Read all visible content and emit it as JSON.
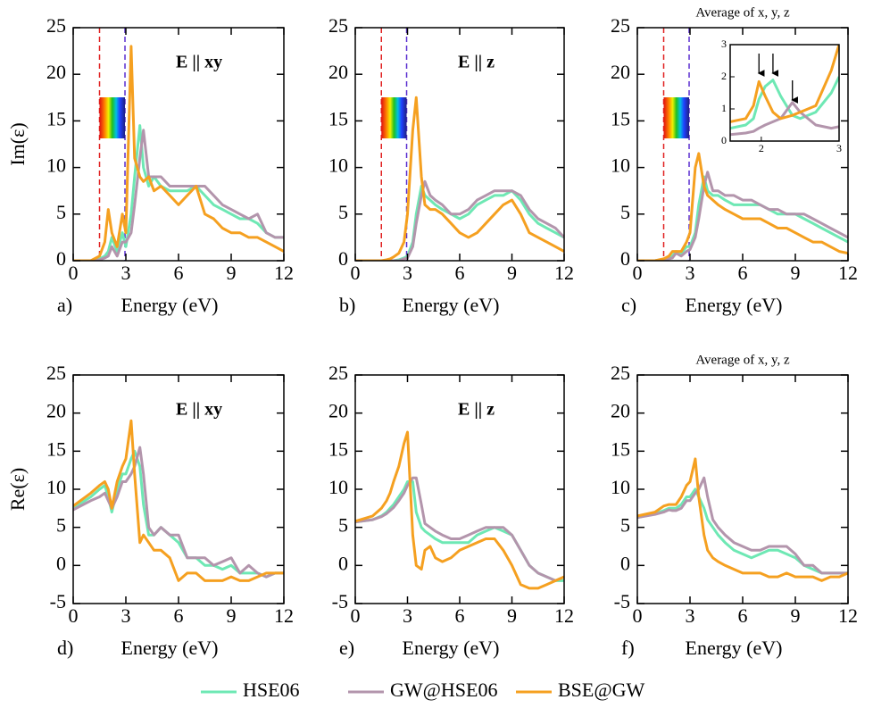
{
  "chart_data": [
    {
      "type": "line",
      "panel_label": "a)",
      "annotation": "E || xy",
      "xlabel": "Energy (eV)",
      "ylabel": "Im(ε)",
      "xlim": [
        0,
        12
      ],
      "ylim": [
        0,
        25
      ],
      "xticks": [
        0,
        3,
        6,
        9,
        12
      ],
      "yticks": [
        0,
        5,
        10,
        15,
        20,
        25
      ],
      "vlines": [
        {
          "x": 1.5,
          "color": "#e02020"
        },
        {
          "x": 2.95,
          "color": "#5a2ed0"
        }
      ],
      "x": [
        0,
        1,
        1.5,
        1.8,
        2,
        2.2,
        2.5,
        2.8,
        3,
        3.3,
        3.5,
        3.8,
        4,
        4.3,
        4.6,
        5,
        5.5,
        6,
        6.5,
        7,
        7.5,
        8,
        8.5,
        9,
        9.5,
        10,
        10.5,
        11,
        11.5,
        12
      ],
      "series": [
        {
          "name": "HSE06",
          "color": "#6ee8b4",
          "values": [
            0,
            0,
            0.2,
            0.5,
            1,
            2.5,
            1,
            3,
            1.5,
            5,
            9,
            14.5,
            10,
            8,
            9,
            8,
            7.5,
            7.5,
            7.5,
            8,
            7,
            6,
            5.5,
            5,
            4.5,
            4.5,
            4,
            3,
            2.5,
            2.5
          ]
        },
        {
          "name": "GW@HSE06",
          "color": "#b395ac",
          "values": [
            0,
            0,
            0.1,
            0.3,
            0.5,
            1.5,
            0.5,
            2,
            2,
            3,
            6,
            11,
            14,
            9,
            9,
            9,
            8,
            8,
            8,
            8,
            8,
            7,
            6,
            5.5,
            5,
            4.5,
            5,
            3,
            2.5,
            2.5
          ]
        },
        {
          "name": "BSE@GW",
          "color": "#f5a020",
          "values": [
            0,
            0,
            0.5,
            2,
            5.5,
            3,
            1.5,
            5,
            3,
            23,
            11,
            9,
            8.5,
            9,
            7.5,
            8,
            7,
            6,
            7,
            8,
            5,
            4.5,
            3.5,
            3,
            3,
            2.5,
            2.5,
            2,
            1.5,
            1
          ]
        }
      ]
    },
    {
      "type": "line",
      "panel_label": "b)",
      "annotation": "E || z",
      "xlabel": "Energy (eV)",
      "xlim": [
        0,
        12
      ],
      "ylim": [
        0,
        25
      ],
      "xticks": [
        0,
        3,
        6,
        9,
        12
      ],
      "yticks": [
        0,
        5,
        10,
        15,
        20,
        25
      ],
      "vlines": [
        {
          "x": 1.5,
          "color": "#e02020"
        },
        {
          "x": 2.95,
          "color": "#5a2ed0"
        }
      ],
      "x": [
        0,
        1,
        1.5,
        1.8,
        2,
        2.2,
        2.5,
        2.8,
        3,
        3.3,
        3.5,
        3.8,
        4,
        4.3,
        4.6,
        5,
        5.5,
        6,
        6.5,
        7,
        7.5,
        8,
        8.5,
        9,
        9.5,
        10,
        10.5,
        11,
        11.5,
        12
      ],
      "series": [
        {
          "color": "#6ee8b4",
          "values": [
            0,
            0,
            0,
            0,
            0,
            0,
            0.1,
            0.3,
            0.5,
            2,
            5,
            8,
            7,
            6.5,
            6,
            5.5,
            5,
            4.5,
            5,
            6,
            6.5,
            7,
            7,
            7.5,
            6.5,
            5,
            4,
            3.5,
            3,
            2.5
          ]
        },
        {
          "color": "#b395ac",
          "values": [
            0,
            0,
            0,
            0,
            0,
            0,
            0,
            0.2,
            0.3,
            1.5,
            4,
            7,
            8.5,
            7,
            6.5,
            6,
            5,
            5,
            5.5,
            6.5,
            7,
            7.5,
            7.5,
            7.5,
            7,
            5.5,
            4.5,
            4,
            3.5,
            2.5
          ]
        },
        {
          "color": "#f5a020",
          "values": [
            0,
            0,
            0,
            0.1,
            0.2,
            0.4,
            0.8,
            2,
            5,
            14,
            17.5,
            9,
            6,
            5.5,
            5.5,
            5,
            4,
            3,
            2.5,
            3,
            4,
            5,
            6,
            6.5,
            5,
            3,
            2.5,
            2,
            1.5,
            1
          ]
        }
      ]
    },
    {
      "type": "line",
      "panel_label": "c)",
      "title": "Average of x, y, z",
      "xlabel": "Energy (eV)",
      "xlim": [
        0,
        12
      ],
      "ylim": [
        0,
        25
      ],
      "xticks": [
        0,
        3,
        6,
        9,
        12
      ],
      "yticks": [
        0,
        5,
        10,
        15,
        20,
        25
      ],
      "vlines": [
        {
          "x": 1.5,
          "color": "#e02020"
        },
        {
          "x": 2.95,
          "color": "#5a2ed0"
        }
      ],
      "x": [
        0,
        1,
        1.5,
        1.8,
        2,
        2.2,
        2.5,
        2.8,
        3,
        3.3,
        3.5,
        3.8,
        4,
        4.3,
        4.6,
        5,
        5.5,
        6,
        6.5,
        7,
        7.5,
        8,
        8.5,
        9,
        9.5,
        10,
        10.5,
        11,
        11.5,
        12
      ],
      "series": [
        {
          "color": "#6ee8b4",
          "values": [
            0,
            0,
            0.1,
            0.3,
            0.5,
            1,
            0.8,
            1.5,
            1.5,
            3,
            6,
            9,
            7.5,
            7,
            7,
            6.5,
            6,
            6,
            6,
            6,
            5.5,
            5,
            5,
            5,
            4.5,
            4,
            3.5,
            3,
            2.5,
            2
          ]
        },
        {
          "color": "#b395ac",
          "values": [
            0,
            0,
            0.1,
            0.2,
            0.3,
            0.8,
            0.5,
            1,
            1.2,
            2.5,
            4.5,
            8,
            9.5,
            7.5,
            7.5,
            7,
            7,
            6.5,
            6.5,
            6,
            5.5,
            5.5,
            5,
            5,
            5,
            4.5,
            4,
            3.5,
            3,
            2.5
          ]
        },
        {
          "color": "#f5a020",
          "values": [
            0,
            0,
            0.2,
            0.5,
            1,
            1,
            1,
            2,
            3,
            10,
            11.5,
            8,
            7,
            6.5,
            6,
            5.5,
            5,
            4.5,
            4.5,
            4.5,
            4,
            3.5,
            3.5,
            3,
            2.5,
            2,
            2,
            1.5,
            1,
            0.8
          ]
        }
      ],
      "inset": {
        "xlim": [
          1.6,
          3
        ],
        "ylim": [
          0,
          3
        ],
        "xticks": [
          2,
          3
        ],
        "yticks": [
          0,
          1,
          2,
          3
        ],
        "arrows": [
          1.97,
          2.15,
          2.4
        ],
        "x": [
          1.6,
          1.8,
          1.9,
          1.97,
          2.05,
          2.15,
          2.25,
          2.4,
          2.5,
          2.7,
          2.9,
          3
        ],
        "series": [
          {
            "color": "#6ee8b4",
            "values": [
              0.4,
              0.5,
              0.7,
              1.3,
              1.7,
              1.9,
              1.4,
              0.8,
              0.7,
              0.9,
              1.5,
              2.0
            ]
          },
          {
            "color": "#b395ac",
            "values": [
              0.2,
              0.25,
              0.3,
              0.4,
              0.5,
              0.6,
              0.7,
              1.2,
              0.9,
              0.5,
              0.4,
              0.45
            ]
          },
          {
            "color": "#f5a020",
            "values": [
              0.6,
              0.7,
              1.1,
              1.85,
              1.4,
              0.9,
              0.7,
              0.8,
              0.9,
              1.1,
              2.2,
              3.0
            ]
          }
        ]
      }
    },
    {
      "type": "line",
      "panel_label": "d)",
      "annotation": "E || xy",
      "xlabel": "Energy (eV)",
      "ylabel": "Re(ε)",
      "xlim": [
        0,
        12
      ],
      "ylim": [
        -5,
        25
      ],
      "xticks": [
        0,
        3,
        6,
        9,
        12
      ],
      "yticks": [
        -5,
        0,
        5,
        10,
        15,
        20,
        25
      ],
      "x": [
        0,
        1,
        1.5,
        1.8,
        2,
        2.2,
        2.5,
        2.8,
        3,
        3.3,
        3.5,
        3.8,
        4,
        4.3,
        4.6,
        5,
        5.5,
        6,
        6.5,
        7,
        7.5,
        8,
        8.5,
        9,
        9.5,
        10,
        10.5,
        11,
        11.5,
        12
      ],
      "series": [
        {
          "color": "#6ee8b4",
          "values": [
            7.5,
            9,
            10,
            10.5,
            9,
            7,
            10,
            12,
            12,
            14,
            15,
            13,
            8,
            4,
            4,
            5,
            4,
            3,
            1,
            1,
            0,
            0,
            -0.5,
            0,
            -1,
            -1,
            -1,
            -1.5,
            -1,
            -1
          ]
        },
        {
          "color": "#b395ac",
          "values": [
            7.3,
            8.5,
            9,
            9.5,
            8.5,
            7.5,
            9,
            11,
            11,
            12,
            13,
            15.5,
            12,
            5,
            4,
            5,
            4,
            4,
            1,
            1,
            1,
            0,
            0.5,
            1,
            -1,
            0,
            -1,
            -1.5,
            -1,
            -1
          ]
        },
        {
          "color": "#f5a020",
          "values": [
            7.8,
            9.5,
            10.5,
            11,
            10,
            7.5,
            11,
            13,
            14,
            19,
            12,
            3,
            4,
            3,
            2,
            2,
            1,
            -2,
            -1,
            -1,
            -2,
            -2,
            -2,
            -1.5,
            -2,
            -2,
            -1.5,
            -1,
            -1,
            -1
          ]
        }
      ]
    },
    {
      "type": "line",
      "panel_label": "e)",
      "annotation": "E || z",
      "xlabel": "Energy (eV)",
      "xlim": [
        0,
        12
      ],
      "ylim": [
        -5,
        25
      ],
      "xticks": [
        0,
        3,
        6,
        9,
        12
      ],
      "yticks": [
        -5,
        0,
        5,
        10,
        15,
        20,
        25
      ],
      "x": [
        0,
        1,
        1.5,
        1.8,
        2,
        2.2,
        2.5,
        2.8,
        3,
        3.3,
        3.5,
        3.8,
        4,
        4.3,
        4.6,
        5,
        5.5,
        6,
        6.5,
        7,
        7.5,
        8,
        8.5,
        9,
        9.5,
        10,
        10.5,
        11,
        11.5,
        12
      ],
      "series": [
        {
          "color": "#6ee8b4",
          "values": [
            5.7,
            6,
            6.5,
            7,
            7.5,
            8,
            9,
            10,
            11,
            11,
            7,
            5,
            4.5,
            4,
            3.5,
            3,
            3,
            3,
            3,
            4,
            4.5,
            5,
            4.5,
            4,
            2,
            0,
            -1,
            -1.5,
            -2,
            -2
          ]
        },
        {
          "color": "#b395ac",
          "values": [
            5.7,
            6,
            6.4,
            6.8,
            7.2,
            7.6,
            8.5,
            9.5,
            10.5,
            11.5,
            11.5,
            8,
            5.5,
            5,
            4.5,
            4,
            3.5,
            3.5,
            4,
            4.5,
            5,
            5,
            5,
            4,
            2,
            0,
            -1,
            -1.5,
            -2,
            -1.5
          ]
        },
        {
          "color": "#f5a020",
          "values": [
            5.8,
            6.5,
            7.5,
            8.5,
            9.5,
            11,
            13,
            16,
            17.5,
            4,
            0,
            -0.5,
            2,
            2.5,
            1,
            0.5,
            1,
            2,
            2.5,
            3,
            3.5,
            3.5,
            2,
            0,
            -2.5,
            -3,
            -3,
            -2.5,
            -2,
            -1.5
          ]
        }
      ]
    },
    {
      "type": "line",
      "panel_label": "f)",
      "title": "Average of x, y, z",
      "xlabel": "Energy (eV)",
      "xlim": [
        0,
        12
      ],
      "ylim": [
        -5,
        25
      ],
      "xticks": [
        0,
        3,
        6,
        9,
        12
      ],
      "yticks": [
        -5,
        0,
        5,
        10,
        15,
        20,
        25
      ],
      "x": [
        0,
        1,
        1.5,
        1.8,
        2,
        2.2,
        2.5,
        2.8,
        3,
        3.3,
        3.5,
        3.8,
        4,
        4.3,
        4.6,
        5,
        5.5,
        6,
        6.5,
        7,
        7.5,
        8,
        8.5,
        9,
        9.5,
        10,
        10.5,
        11,
        11.5,
        12
      ],
      "series": [
        {
          "color": "#6ee8b4",
          "values": [
            6.3,
            6.8,
            7.2,
            7.5,
            7.5,
            7.5,
            8,
            9,
            9,
            10,
            9,
            7.5,
            6,
            5,
            4,
            3,
            2,
            1.5,
            1,
            1.5,
            2,
            2,
            1.5,
            1,
            0,
            -0.5,
            -1,
            -1,
            -1,
            -1
          ]
        },
        {
          "color": "#b395ac",
          "values": [
            6.3,
            6.7,
            7,
            7.3,
            7.2,
            7.2,
            7.5,
            8.5,
            8.5,
            9.5,
            10,
            11.5,
            9,
            6,
            5,
            4,
            3,
            2.5,
            2,
            2,
            2.5,
            2.5,
            2.5,
            1.5,
            0,
            0,
            -1,
            -1,
            -1,
            -1
          ]
        },
        {
          "color": "#f5a020",
          "values": [
            6.5,
            7,
            7.8,
            8,
            8,
            8,
            9,
            10.5,
            11,
            14,
            9,
            4,
            2,
            1,
            0.5,
            0,
            -0.5,
            -1,
            -1,
            -1,
            -1.5,
            -1.5,
            -1,
            -1.5,
            -1.5,
            -1.5,
            -2,
            -1.5,
            -1.5,
            -1
          ]
        }
      ]
    }
  ]
}
